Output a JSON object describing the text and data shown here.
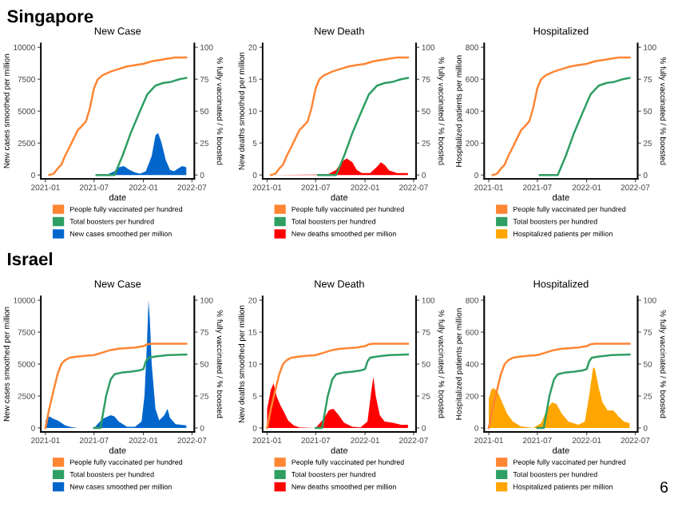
{
  "chart_data": [
    {
      "type": "area",
      "title": "New Case",
      "xlabel": "date",
      "ylabel": "New cases smoothed per million",
      "y2label": "% fully vaccinated / % boosted",
      "annotations": [
        "Singapore"
      ],
      "legend": "bottom",
      "xlim": [
        "2020-12-15",
        "2022-07-10"
      ],
      "xticks": [
        "2021-01",
        "2021-07",
        "2022-01",
        "2022-07"
      ],
      "ylim": [
        -300,
        10300
      ],
      "yticks": [
        0,
        2500,
        5000,
        7500,
        10000
      ],
      "y2lim": [
        -3,
        103
      ],
      "y2ticks": [
        0,
        25,
        50,
        75,
        100
      ],
      "series": [
        {
          "name": "People fully vaccinated per hundred",
          "type": "line",
          "axis": "y2",
          "color": "#ff8533",
          "x": [
            "2021-01-15",
            "2021-02-01",
            "2021-02-15",
            "2021-03-01",
            "2021-03-15",
            "2021-04-01",
            "2021-04-15",
            "2021-05-01",
            "2021-05-15",
            "2021-06-01",
            "2021-06-15",
            "2021-07-01",
            "2021-07-15",
            "2021-08-01",
            "2021-09-01",
            "2021-10-01",
            "2021-11-01",
            "2021-12-01",
            "2022-01-01",
            "2022-02-01",
            "2022-03-01",
            "2022-04-01",
            "2022-05-01",
            "2022-06-10"
          ],
          "values": [
            0,
            1,
            5,
            8,
            15,
            22,
            28,
            35,
            38,
            42,
            52,
            68,
            75,
            78,
            81,
            83,
            85,
            86,
            87,
            89,
            90,
            91,
            92,
            92
          ]
        },
        {
          "name": "Total boosters per hundred",
          "type": "line",
          "axis": "y2",
          "color": "#2e9e63",
          "x": [
            "2021-07-10",
            "2021-09-15",
            "2021-10-15",
            "2021-11-15",
            "2021-12-15",
            "2022-01-15",
            "2022-02-15",
            "2022-03-15",
            "2022-04-15",
            "2022-05-15",
            "2022-06-10"
          ],
          "values": [
            0,
            0,
            15,
            33,
            48,
            63,
            70,
            72,
            73,
            75,
            76
          ]
        },
        {
          "name": "New cases smoothed per million",
          "axis": "y",
          "color": "#0066cc",
          "x": [
            "2021-07-15",
            "2021-08-15",
            "2021-09-15",
            "2021-10-01",
            "2021-10-20",
            "2021-11-10",
            "2021-12-01",
            "2021-12-20",
            "2022-01-10",
            "2022-02-01",
            "2022-02-15",
            "2022-02-25",
            "2022-03-10",
            "2022-03-25",
            "2022-04-10",
            "2022-04-25",
            "2022-05-10",
            "2022-05-25",
            "2022-06-10"
          ],
          "values": [
            0,
            0,
            300,
            600,
            700,
            400,
            200,
            100,
            300,
            1500,
            3100,
            3300,
            2500,
            1200,
            400,
            300,
            500,
            700,
            600
          ]
        }
      ]
    },
    {
      "type": "area",
      "title": "New Death",
      "xlabel": "date",
      "ylabel": "New deaths smoothed per million",
      "y2label": "% fully vaccinated / % boosted",
      "legend": "bottom",
      "xlim": [
        "2020-12-15",
        "2022-07-10"
      ],
      "xticks": [
        "2021-01",
        "2021-07",
        "2022-01",
        "2022-07"
      ],
      "ylim": [
        -0.6,
        20.6
      ],
      "yticks": [
        0,
        5,
        10,
        15,
        20
      ],
      "y2lim": [
        -3,
        103
      ],
      "y2ticks": [
        0,
        25,
        50,
        75,
        100
      ],
      "series": [
        {
          "name": "People fully vaccinated per hundred",
          "type": "line",
          "axis": "y2",
          "color": "#ff8533",
          "x": [
            "2021-01-15",
            "2021-02-01",
            "2021-02-15",
            "2021-03-01",
            "2021-03-15",
            "2021-04-01",
            "2021-04-15",
            "2021-05-01",
            "2021-05-15",
            "2021-06-01",
            "2021-06-15",
            "2021-07-01",
            "2021-07-15",
            "2021-08-01",
            "2021-09-01",
            "2021-10-01",
            "2021-11-01",
            "2021-12-01",
            "2022-01-01",
            "2022-02-01",
            "2022-03-01",
            "2022-04-01",
            "2022-05-01",
            "2022-06-10"
          ],
          "values": [
            0,
            1,
            5,
            8,
            15,
            22,
            28,
            35,
            38,
            42,
            52,
            68,
            75,
            78,
            81,
            83,
            85,
            86,
            87,
            89,
            90,
            91,
            92,
            92
          ]
        },
        {
          "name": "Total boosters per hundred",
          "type": "line",
          "axis": "y2",
          "color": "#2e9e63",
          "x": [
            "2021-07-10",
            "2021-09-15",
            "2021-10-15",
            "2021-11-15",
            "2021-12-15",
            "2022-01-15",
            "2022-02-15",
            "2022-03-15",
            "2022-04-15",
            "2022-05-15",
            "2022-06-10"
          ],
          "values": [
            0,
            0,
            15,
            33,
            48,
            63,
            70,
            72,
            73,
            75,
            76
          ]
        },
        {
          "name": "New deaths smoothed per million",
          "axis": "y",
          "color": "#ff0000",
          "x": [
            "2021-01-15",
            "2021-08-15",
            "2021-09-15",
            "2021-10-10",
            "2021-10-25",
            "2021-11-15",
            "2021-12-01",
            "2021-12-20",
            "2022-01-20",
            "2022-02-15",
            "2022-03-01",
            "2022-03-15",
            "2022-04-01",
            "2022-05-01",
            "2022-06-10"
          ],
          "values": [
            0,
            0.1,
            0.8,
            2.2,
            2.6,
            2.0,
            0.8,
            0.3,
            0.3,
            1.3,
            2.0,
            1.6,
            0.7,
            0.3,
            0.3
          ]
        }
      ]
    },
    {
      "type": "area",
      "title": "Hospitalized",
      "xlabel": "date",
      "ylabel": "Hospitalized patients per million",
      "y2label": "% fully vaccinated / % boosted",
      "legend": "bottom",
      "xlim": [
        "2020-12-15",
        "2022-07-10"
      ],
      "xticks": [
        "2021-01",
        "2021-07",
        "2022-01",
        "2022-07"
      ],
      "ylim": [
        -24,
        824
      ],
      "yticks": [
        0,
        200,
        400,
        600,
        800
      ],
      "y2lim": [
        -3,
        103
      ],
      "y2ticks": [
        0,
        25,
        50,
        75,
        100
      ],
      "series": [
        {
          "name": "People fully vaccinated per hundred",
          "type": "line",
          "axis": "y2",
          "color": "#ff8533",
          "x": [
            "2021-01-15",
            "2021-02-01",
            "2021-02-15",
            "2021-03-01",
            "2021-03-15",
            "2021-04-01",
            "2021-04-15",
            "2021-05-01",
            "2021-05-15",
            "2021-06-01",
            "2021-06-15",
            "2021-07-01",
            "2021-07-15",
            "2021-08-01",
            "2021-09-01",
            "2021-10-01",
            "2021-11-01",
            "2021-12-01",
            "2022-01-01",
            "2022-02-01",
            "2022-03-01",
            "2022-04-01",
            "2022-05-01",
            "2022-06-10"
          ],
          "values": [
            0,
            1,
            5,
            8,
            15,
            22,
            28,
            35,
            38,
            42,
            52,
            68,
            75,
            78,
            81,
            83,
            85,
            86,
            87,
            89,
            90,
            91,
            92,
            92
          ]
        },
        {
          "name": "Total boosters per hundred",
          "type": "line",
          "axis": "y2",
          "color": "#2e9e63",
          "x": [
            "2021-07-10",
            "2021-09-15",
            "2021-10-15",
            "2021-11-15",
            "2021-12-15",
            "2022-01-15",
            "2022-02-15",
            "2022-03-15",
            "2022-04-15",
            "2022-05-15",
            "2022-06-10"
          ],
          "values": [
            0,
            0,
            15,
            33,
            48,
            63,
            70,
            72,
            73,
            75,
            76
          ]
        },
        {
          "name": "Hospitalized patients per million",
          "axis": "y",
          "color": "#ffa500"
        }
      ]
    },
    {
      "type": "area",
      "title": "New Case",
      "xlabel": "date",
      "ylabel": "New cases smoothed per million",
      "y2label": "% fully vaccinated / % boosted",
      "annotations": [
        "Israel"
      ],
      "legend": "bottom",
      "xlim": [
        "2020-12-15",
        "2022-07-10"
      ],
      "xticks": [
        "2021-01",
        "2021-07",
        "2022-01",
        "2022-07"
      ],
      "ylim": [
        -300,
        10300
      ],
      "yticks": [
        0,
        2500,
        5000,
        7500,
        10000
      ],
      "y2lim": [
        -3,
        103
      ],
      "y2ticks": [
        0,
        25,
        50,
        75,
        100
      ],
      "series": [
        {
          "name": "People fully vaccinated per hundred",
          "type": "line",
          "axis": "y2",
          "color": "#ff8533",
          "x": [
            "2021-01-01",
            "2021-01-15",
            "2021-02-01",
            "2021-02-15",
            "2021-03-01",
            "2021-03-15",
            "2021-04-01",
            "2021-05-01",
            "2021-06-01",
            "2021-07-01",
            "2021-08-01",
            "2021-09-01",
            "2021-10-01",
            "2021-11-01",
            "2021-12-01",
            "2022-01-01",
            "2022-01-15",
            "2022-02-01",
            "2022-06-10"
          ],
          "values": [
            0,
            15,
            30,
            42,
            50,
            53,
            55,
            56,
            56.5,
            57,
            59,
            61,
            62,
            62.5,
            63,
            64,
            65.5,
            66,
            66
          ]
        },
        {
          "name": "Total boosters per hundred",
          "type": "line",
          "axis": "y2",
          "color": "#2e9e63",
          "x": [
            "2021-07-01",
            "2021-07-25",
            "2021-08-15",
            "2021-09-01",
            "2021-09-15",
            "2021-10-15",
            "2021-11-15",
            "2021-12-15",
            "2022-01-01",
            "2022-01-10",
            "2022-01-20",
            "2022-02-15",
            "2022-04-01",
            "2022-06-10"
          ],
          "values": [
            0,
            0,
            25,
            38,
            42,
            43.5,
            44,
            45,
            46,
            52,
            55,
            56,
            57,
            57.5
          ]
        },
        {
          "name": "New cases smoothed per million",
          "axis": "y",
          "color": "#0066cc",
          "x": [
            "2021-01-01",
            "2021-01-15",
            "2021-02-01",
            "2021-02-15",
            "2021-03-01",
            "2021-03-15",
            "2021-04-01",
            "2021-05-01",
            "2021-06-01",
            "2021-07-01",
            "2021-08-01",
            "2021-09-01",
            "2021-09-15",
            "2021-10-01",
            "2021-11-01",
            "2021-12-01",
            "2021-12-25",
            "2022-01-05",
            "2022-01-15",
            "2022-01-20",
            "2022-01-25",
            "2022-02-01",
            "2022-02-15",
            "2022-03-01",
            "2022-03-20",
            "2022-04-01",
            "2022-04-10",
            "2022-05-01",
            "2022-06-10"
          ],
          "values": [
            600,
            900,
            700,
            600,
            400,
            200,
            100,
            0,
            0,
            0,
            700,
            1000,
            900,
            500,
            100,
            100,
            500,
            2500,
            7000,
            10000,
            8500,
            5000,
            1500,
            600,
            1000,
            1500,
            800,
            300,
            200
          ]
        }
      ]
    },
    {
      "type": "area",
      "title": "New Death",
      "xlabel": "date",
      "ylabel": "New deaths smoothed per million",
      "y2label": "% fully vaccinated / % boosted",
      "legend": "bottom",
      "xlim": [
        "2020-12-15",
        "2022-07-10"
      ],
      "xticks": [
        "2021-01",
        "2021-07",
        "2022-01",
        "2022-07"
      ],
      "ylim": [
        -0.6,
        20.6
      ],
      "yticks": [
        0,
        5,
        10,
        15,
        20
      ],
      "y2lim": [
        -3,
        103
      ],
      "y2ticks": [
        0,
        25,
        50,
        75,
        100
      ],
      "series": [
        {
          "name": "People fully vaccinated per hundred",
          "type": "line",
          "axis": "y2",
          "color": "#ff8533",
          "x": [
            "2021-01-01",
            "2021-01-15",
            "2021-02-01",
            "2021-02-15",
            "2021-03-01",
            "2021-03-15",
            "2021-04-01",
            "2021-05-01",
            "2021-06-01",
            "2021-07-01",
            "2021-08-01",
            "2021-09-01",
            "2021-10-01",
            "2021-11-01",
            "2021-12-01",
            "2022-01-01",
            "2022-01-15",
            "2022-02-01",
            "2022-06-10"
          ],
          "values": [
            0,
            15,
            30,
            42,
            50,
            53,
            55,
            56,
            56.5,
            57,
            59,
            61,
            62,
            62.5,
            63,
            64,
            65.5,
            66,
            66
          ]
        },
        {
          "name": "Total boosters per hundred",
          "type": "line",
          "axis": "y2",
          "color": "#2e9e63",
          "x": [
            "2021-07-01",
            "2021-07-25",
            "2021-08-15",
            "2021-09-01",
            "2021-09-15",
            "2021-10-15",
            "2021-11-15",
            "2021-12-15",
            "2022-01-01",
            "2022-01-10",
            "2022-01-20",
            "2022-02-15",
            "2022-04-01",
            "2022-06-10"
          ],
          "values": [
            0,
            0,
            25,
            38,
            42,
            43.5,
            44,
            45,
            46,
            52,
            55,
            56,
            57,
            57.5
          ]
        },
        {
          "name": "New deaths smoothed per million",
          "axis": "y",
          "color": "#ff0000",
          "x": [
            "2021-01-01",
            "2021-01-15",
            "2021-01-25",
            "2021-02-05",
            "2021-02-20",
            "2021-03-05",
            "2021-03-20",
            "2021-04-10",
            "2021-05-01",
            "2021-07-01",
            "2021-08-01",
            "2021-08-20",
            "2021-09-05",
            "2021-09-25",
            "2021-10-15",
            "2021-11-15",
            "2021-12-15",
            "2022-01-10",
            "2022-01-25",
            "2022-02-01",
            "2022-02-10",
            "2022-02-25",
            "2022-03-15",
            "2022-04-15",
            "2022-05-15",
            "2022-06-10"
          ],
          "values": [
            3,
            6,
            7,
            5,
            3.5,
            2.5,
            1.2,
            0.4,
            0.1,
            0,
            1.5,
            2.8,
            3,
            2,
            0.8,
            0.2,
            0.1,
            1,
            6,
            8,
            5,
            2,
            1,
            0.8,
            0.5,
            0.5
          ]
        }
      ]
    },
    {
      "type": "area",
      "title": "Hospitalized",
      "xlabel": "date",
      "ylabel": "Hospitalized patients per million",
      "y2label": "% fully vaccinated / % boosted",
      "annotations": [
        "6"
      ],
      "legend": "bottom",
      "xlim": [
        "2020-12-15",
        "2022-07-10"
      ],
      "xticks": [
        "2021-01",
        "2021-07",
        "2022-01",
        "2022-07"
      ],
      "ylim": [
        -24,
        824
      ],
      "yticks": [
        0,
        200,
        400,
        600,
        800
      ],
      "y2lim": [
        -3,
        103
      ],
      "y2ticks": [
        0,
        25,
        50,
        75,
        100
      ],
      "series": [
        {
          "name": "People fully vaccinated per hundred",
          "type": "line",
          "axis": "y2",
          "color": "#ff8533",
          "x": [
            "2021-01-01",
            "2021-01-15",
            "2021-02-01",
            "2021-02-15",
            "2021-03-01",
            "2021-03-15",
            "2021-04-01",
            "2021-05-01",
            "2021-06-01",
            "2021-07-01",
            "2021-08-01",
            "2021-09-01",
            "2021-10-01",
            "2021-11-01",
            "2021-12-01",
            "2022-01-01",
            "2022-01-15",
            "2022-02-01",
            "2022-06-10"
          ],
          "values": [
            0,
            15,
            30,
            42,
            50,
            53,
            55,
            56,
            56.5,
            57,
            59,
            61,
            62,
            62.5,
            63,
            64,
            65.5,
            66,
            66
          ]
        },
        {
          "name": "Total boosters per hundred",
          "type": "line",
          "axis": "y2",
          "color": "#2e9e63",
          "x": [
            "2021-07-01",
            "2021-07-25",
            "2021-08-15",
            "2021-09-01",
            "2021-09-15",
            "2021-10-15",
            "2021-11-15",
            "2021-12-15",
            "2022-01-01",
            "2022-01-10",
            "2022-01-20",
            "2022-02-15",
            "2022-04-01",
            "2022-06-10"
          ],
          "values": [
            0,
            0,
            25,
            38,
            42,
            43.5,
            44,
            45,
            46,
            52,
            55,
            56,
            57,
            57.5
          ]
        },
        {
          "name": "Hospitalized patients per million",
          "axis": "y",
          "color": "#ffa500",
          "x": [
            "2021-01-01",
            "2021-01-10",
            "2021-01-20",
            "2021-02-05",
            "2021-02-20",
            "2021-03-10",
            "2021-04-01",
            "2021-05-01",
            "2021-06-15",
            "2021-07-15",
            "2021-08-10",
            "2021-08-25",
            "2021-09-10",
            "2021-09-30",
            "2021-10-25",
            "2021-12-01",
            "2021-12-25",
            "2022-01-10",
            "2022-01-25",
            "2022-02-01",
            "2022-02-15",
            "2022-03-01",
            "2022-03-20",
            "2022-04-10",
            "2022-05-01",
            "2022-05-20",
            "2022-06-10"
          ],
          "values": [
            180,
            240,
            250,
            220,
            160,
            90,
            40,
            10,
            0,
            30,
            130,
            160,
            150,
            90,
            40,
            20,
            40,
            200,
            380,
            370,
            250,
            160,
            110,
            110,
            70,
            40,
            30
          ]
        }
      ]
    }
  ]
}
